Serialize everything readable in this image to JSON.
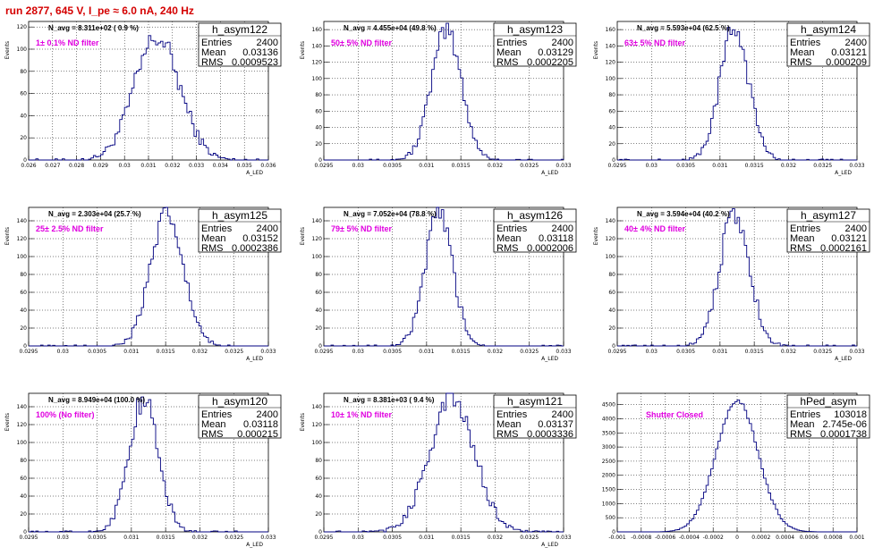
{
  "page_title": "run 2877,   645 V, I_pe ≈ 6.0 nA, 240 Hz",
  "chart_data": [
    {
      "type": "histogram",
      "name": "h_asym122",
      "n_avg_label": "N_avg = 8.311e+02 ( 0.9 %)",
      "filter_label": "1± 0.1% ND filter",
      "entries": "2400",
      "mean": "0.03136",
      "rms": "0.0009523",
      "xlim": [
        0.026,
        0.036
      ],
      "ylim": [
        0,
        125
      ],
      "xticks": [
        "0.026",
        "0.027",
        "0.028",
        "0.029",
        "0.03",
        "0.031",
        "0.032",
        "0.033",
        "0.034",
        "0.035",
        "0.036"
      ],
      "yticks": [
        "0",
        "20",
        "40",
        "60",
        "80",
        "100",
        "120"
      ],
      "xlabel": "A_LED",
      "ylabel": "Events",
      "center": 0.03136,
      "sigma": 0.00095,
      "peak": 110,
      "nbins": 100
    },
    {
      "type": "histogram",
      "name": "h_asym123",
      "n_avg_label": "N_avg = 4.455e+04 (49.8 %)",
      "filter_label": "50± 5% ND filter",
      "entries": "2400",
      "mean": "0.03129",
      "rms": "0.0002205",
      "xlim": [
        0.0295,
        0.033
      ],
      "ylim": [
        0,
        170
      ],
      "xticks": [
        "0.0295",
        "0.03",
        "0.0305",
        "0.031",
        "0.0315",
        "0.032",
        "0.0325",
        "0.033"
      ],
      "yticks": [
        "0",
        "20",
        "40",
        "60",
        "80",
        "100",
        "120",
        "140",
        "160"
      ],
      "xlabel": "A_LED",
      "ylabel": "Events",
      "center": 0.03129,
      "sigma": 0.00022,
      "peak": 158,
      "nbins": 100
    },
    {
      "type": "histogram",
      "name": "h_asym124",
      "n_avg_label": "N_avg = 5.593e+04 (62.5 %)",
      "filter_label": "63± 5% ND filter",
      "entries": "2400",
      "mean": "0.03121",
      "rms": "0.000209",
      "xlim": [
        0.0295,
        0.033
      ],
      "ylim": [
        0,
        170
      ],
      "xticks": [
        "0.0295",
        "0.03",
        "0.0305",
        "0.031",
        "0.0315",
        "0.032",
        "0.0325",
        "0.033"
      ],
      "yticks": [
        "0",
        "20",
        "40",
        "60",
        "80",
        "100",
        "120",
        "140",
        "160"
      ],
      "xlabel": "A_LED",
      "ylabel": "Events",
      "center": 0.03121,
      "sigma": 0.00021,
      "peak": 162,
      "nbins": 100
    },
    {
      "type": "histogram",
      "name": "h_asym125",
      "n_avg_label": "N_avg = 2.303e+04 (25.7 %)",
      "filter_label": "25± 2.5% ND filter",
      "entries": "2400",
      "mean": "0.03152",
      "rms": "0.0002386",
      "xlim": [
        0.0295,
        0.033
      ],
      "ylim": [
        0,
        155
      ],
      "xticks": [
        "0.0295",
        "0.03",
        "0.0305",
        "0.031",
        "0.0315",
        "0.032",
        "0.0325",
        "0.033"
      ],
      "yticks": [
        "0",
        "20",
        "40",
        "60",
        "80",
        "100",
        "120",
        "140"
      ],
      "xlabel": "A_LED",
      "ylabel": "Events",
      "center": 0.03152,
      "sigma": 0.00024,
      "peak": 145,
      "nbins": 100
    },
    {
      "type": "histogram",
      "name": "h_asym126",
      "n_avg_label": "N_avg = 7.052e+04 (78.8 %)",
      "filter_label": "79± 5% ND filter",
      "entries": "2400",
      "mean": "0.03118",
      "rms": "0.0002006",
      "xlim": [
        0.0295,
        0.033
      ],
      "ylim": [
        0,
        155
      ],
      "xticks": [
        "0.0295",
        "0.03",
        "0.0305",
        "0.031",
        "0.0315",
        "0.032",
        "0.0325",
        "0.033"
      ],
      "yticks": [
        "0",
        "20",
        "40",
        "60",
        "80",
        "100",
        "120",
        "140"
      ],
      "xlabel": "A_LED",
      "ylabel": "Events",
      "center": 0.03118,
      "sigma": 0.0002,
      "peak": 148,
      "nbins": 100
    },
    {
      "type": "histogram",
      "name": "h_asym127",
      "n_avg_label": "N_avg = 3.594e+04 (40.2 %)",
      "filter_label": "40± 4% ND filter",
      "entries": "2400",
      "mean": "0.03121",
      "rms": "0.0002161",
      "xlim": [
        0.0295,
        0.033
      ],
      "ylim": [
        0,
        155
      ],
      "xticks": [
        "0.0295",
        "0.03",
        "0.0305",
        "0.031",
        "0.0315",
        "0.032",
        "0.0325",
        "0.033"
      ],
      "yticks": [
        "0",
        "20",
        "40",
        "60",
        "80",
        "100",
        "120",
        "140"
      ],
      "xlabel": "A_LED",
      "ylabel": "Events",
      "center": 0.03121,
      "sigma": 0.00022,
      "peak": 146,
      "nbins": 100
    },
    {
      "type": "histogram",
      "name": "h_asym120",
      "n_avg_label": "N_avg = 8.949e+04 (100.0 %)",
      "filter_label": "100% (No filter)",
      "entries": "2400",
      "mean": "0.03118",
      "rms": "0.000215",
      "xlim": [
        0.0295,
        0.033
      ],
      "ylim": [
        0,
        155
      ],
      "xticks": [
        "0.0295",
        "0.03",
        "0.0305",
        "0.031",
        "0.0315",
        "0.032",
        "0.0325",
        "0.033"
      ],
      "yticks": [
        "0",
        "20",
        "40",
        "60",
        "80",
        "100",
        "120",
        "140"
      ],
      "xlabel": "A_LED",
      "ylabel": "Events",
      "center": 0.03118,
      "sigma": 0.000215,
      "peak": 148,
      "nbins": 100
    },
    {
      "type": "histogram",
      "name": "h_asym121",
      "n_avg_label": "N_avg = 8.381e+03 ( 9.4 %)",
      "filter_label": "10± 1% ND filter",
      "entries": "2400",
      "mean": "0.03137",
      "rms": "0.0003336",
      "xlim": [
        0.0295,
        0.033
      ],
      "ylim": [
        0,
        155
      ],
      "xticks": [
        "0.0295",
        "0.03",
        "0.0305",
        "0.031",
        "0.0315",
        "0.032",
        "0.0325",
        "0.033"
      ],
      "yticks": [
        "0",
        "20",
        "40",
        "60",
        "80",
        "100",
        "120",
        "140"
      ],
      "xlabel": "A_LED",
      "ylabel": "Events",
      "center": 0.03137,
      "sigma": 0.00033,
      "peak": 148,
      "nbins": 100
    },
    {
      "type": "histogram",
      "name": "hPed_asym",
      "n_avg_label": "",
      "filter_label": "Shutter Closed",
      "entries": "103018",
      "mean": "2.745e-06",
      "rms": "0.0001738",
      "xlim": [
        -0.001,
        0.001
      ],
      "ylim": [
        0,
        4900
      ],
      "xticks": [
        "-0.001",
        "-0.0008",
        "-0.0006",
        "-0.0004",
        "-0.0002",
        "0",
        "0.0002",
        "0.0004",
        "0.0006",
        "0.0008",
        "0.001"
      ],
      "yticks": [
        "0",
        "500",
        "1000",
        "1500",
        "2000",
        "2500",
        "3000",
        "3500",
        "4000",
        "4500"
      ],
      "xlabel": "",
      "ylabel": "",
      "center": 0.0,
      "sigma": 0.000174,
      "peak": 4650,
      "nbins": 100
    }
  ],
  "stats_labels": {
    "entries": "Entries",
    "mean": "Mean",
    "rms": "RMS"
  },
  "colors": {
    "title": "#d40000",
    "histogram": "#000080",
    "filter_text": "#e000e0",
    "grid": "#000000"
  }
}
